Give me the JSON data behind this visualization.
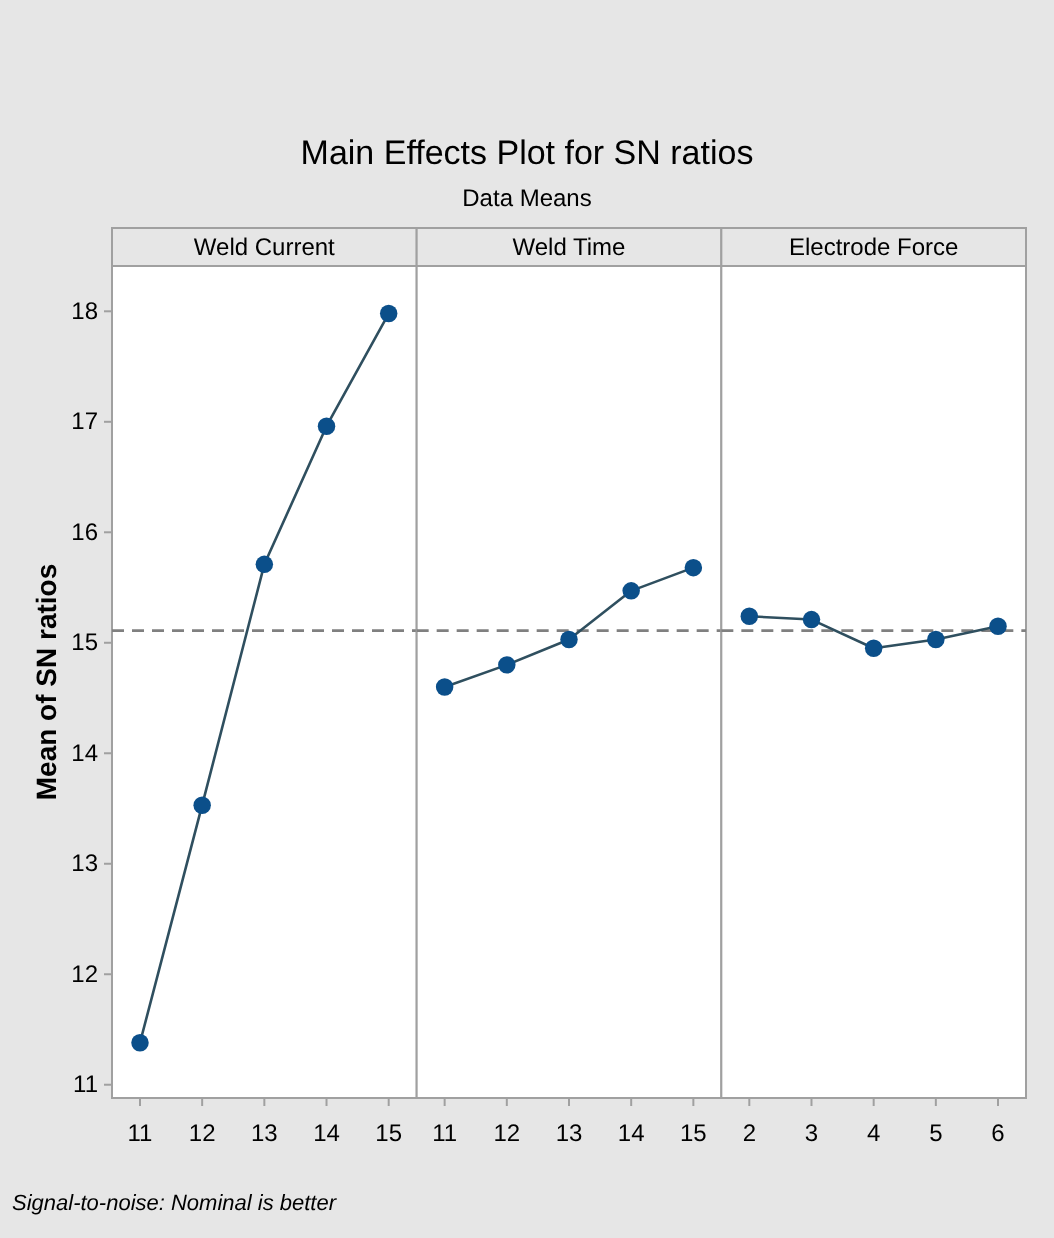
{
  "chart_data": [
    {
      "type": "line",
      "title": "Main Effects Plot for SN ratios",
      "xlabel": "Weld Current",
      "ylabel": "Mean of SN ratios",
      "annotations": [
        "Signal-to-noise: Nominal is better"
      ],
      "categories": [
        "11",
        "12",
        "13",
        "14",
        "15"
      ],
      "series": [
        {
          "color": "#0b4f8a",
          "values": [
            11.38,
            13.53,
            15.71,
            16.96,
            17.98
          ]
        }
      ],
      "ylim": [
        10.88,
        18.41
      ],
      "yticks": [
        11,
        12,
        13,
        14,
        15,
        16,
        17,
        18
      ],
      "ref_lines": [
        {
          "axis": "y",
          "value": 15.11,
          "color": "#808080",
          "line_style": "dashed"
        }
      ],
      "marker": "circle",
      "line_style": "solid"
    },
    {
      "type": "line",
      "subtitle": "Data Means",
      "xlabel": "Weld Time",
      "categories": [
        "11",
        "12",
        "13",
        "14",
        "15"
      ],
      "series": [
        {
          "color": "#0b4f8a",
          "values": [
            14.6,
            14.8,
            15.03,
            15.47,
            15.68
          ]
        }
      ],
      "ylim": [
        10.88,
        18.41
      ],
      "tick_labels": "x",
      "ref_lines": [
        {
          "axis": "y",
          "value": 15.11,
          "color": "#808080",
          "line_style": "dashed"
        }
      ],
      "marker": "circle",
      "line_style": "solid"
    },
    {
      "type": "line",
      "xlabel": "Electrode Force",
      "categories": [
        "2",
        "3",
        "4",
        "5",
        "6"
      ],
      "series": [
        {
          "color": "#0b4f8a",
          "values": [
            15.24,
            15.21,
            14.95,
            15.03,
            15.15
          ]
        }
      ],
      "ylim": [
        10.88,
        18.41
      ],
      "tick_labels": "x",
      "ref_lines": [
        {
          "axis": "y",
          "value": 15.11,
          "color": "#808080",
          "line_style": "dashed"
        }
      ],
      "marker": "circle",
      "line_style": "solid"
    }
  ]
}
